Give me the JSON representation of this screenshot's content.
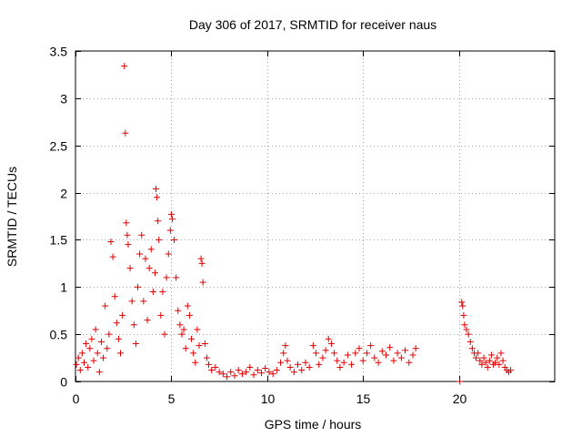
{
  "chart_data": {
    "type": "scatter",
    "title": "Day 306 of 2017, SRMTID for receiver naus",
    "xlabel": "GPS time / hours",
    "ylabel": "SRMTID / TECUs",
    "xlim": [
      0,
      25
    ],
    "ylim": [
      0,
      3.5
    ],
    "xticks": [
      0,
      5,
      10,
      15,
      20
    ],
    "xtick_labels": [
      "0",
      "5",
      "10",
      "15",
      "20"
    ],
    "yticks": [
      0,
      0.5,
      1,
      1.5,
      2,
      2.5,
      3,
      3.5
    ],
    "ytick_labels": [
      "0",
      "0.5",
      "1",
      "1.5",
      "2",
      "2.5",
      "3",
      "3.5"
    ],
    "grid": true,
    "marker": "+",
    "colors": {
      "points": "#e00000",
      "axis": "#000000",
      "grid": "#a0a0a0"
    },
    "series": [
      {
        "name": "SRMTID",
        "points": [
          [
            0.05,
            0.18
          ],
          [
            0.15,
            0.25
          ],
          [
            0.25,
            0.12
          ],
          [
            0.35,
            0.3
          ],
          [
            0.45,
            0.2
          ],
          [
            0.55,
            0.4
          ],
          [
            0.65,
            0.15
          ],
          [
            0.75,
            0.35
          ],
          [
            0.85,
            0.45
          ],
          [
            0.95,
            0.22
          ],
          [
            1.05,
            0.55
          ],
          [
            1.15,
            0.3
          ],
          [
            1.25,
            0.1
          ],
          [
            1.35,
            0.42
          ],
          [
            1.45,
            0.25
          ],
          [
            1.55,
            0.8
          ],
          [
            1.65,
            0.35
          ],
          [
            1.75,
            0.5
          ],
          [
            1.85,
            1.48
          ],
          [
            1.95,
            1.32
          ],
          [
            2.05,
            0.9
          ],
          [
            2.15,
            0.62
          ],
          [
            2.25,
            0.45
          ],
          [
            2.35,
            0.3
          ],
          [
            2.45,
            0.7
          ],
          [
            2.55,
            3.34
          ],
          [
            2.6,
            2.63
          ],
          [
            2.65,
            1.68
          ],
          [
            2.7,
            1.55
          ],
          [
            2.75,
            1.45
          ],
          [
            2.85,
            1.2
          ],
          [
            2.95,
            0.85
          ],
          [
            3.05,
            0.6
          ],
          [
            3.15,
            0.4
          ],
          [
            3.25,
            1.0
          ],
          [
            3.35,
            1.35
          ],
          [
            3.45,
            1.55
          ],
          [
            3.55,
            0.85
          ],
          [
            3.65,
            1.3
          ],
          [
            3.75,
            0.65
          ],
          [
            3.85,
            1.2
          ],
          [
            3.95,
            1.4
          ],
          [
            4.05,
            0.95
          ],
          [
            4.15,
            1.15
          ],
          [
            4.2,
            2.04
          ],
          [
            4.25,
            1.95
          ],
          [
            4.3,
            1.7
          ],
          [
            4.35,
            1.5
          ],
          [
            4.45,
            0.7
          ],
          [
            4.55,
            0.95
          ],
          [
            4.65,
            0.5
          ],
          [
            4.75,
            1.1
          ],
          [
            4.85,
            1.35
          ],
          [
            4.95,
            1.6
          ],
          [
            5.0,
            1.77
          ],
          [
            5.05,
            1.72
          ],
          [
            5.15,
            1.5
          ],
          [
            5.25,
            1.1
          ],
          [
            5.35,
            0.75
          ],
          [
            5.45,
            0.6
          ],
          [
            5.55,
            0.5
          ],
          [
            5.65,
            0.55
          ],
          [
            5.75,
            0.35
          ],
          [
            5.85,
            0.8
          ],
          [
            5.95,
            0.7
          ],
          [
            6.05,
            0.45
          ],
          [
            6.15,
            0.3
          ],
          [
            6.25,
            0.2
          ],
          [
            6.35,
            0.55
          ],
          [
            6.45,
            0.38
          ],
          [
            6.55,
            1.3
          ],
          [
            6.6,
            1.25
          ],
          [
            6.65,
            1.05
          ],
          [
            6.75,
            0.4
          ],
          [
            6.85,
            0.25
          ],
          [
            6.95,
            0.18
          ],
          [
            7.1,
            0.12
          ],
          [
            7.3,
            0.15
          ],
          [
            7.5,
            0.1
          ],
          [
            7.7,
            0.08
          ],
          [
            7.9,
            0.05
          ],
          [
            8.1,
            0.1
          ],
          [
            8.3,
            0.06
          ],
          [
            8.5,
            0.12
          ],
          [
            8.7,
            0.08
          ],
          [
            8.9,
            0.1
          ],
          [
            9.1,
            0.15
          ],
          [
            9.3,
            0.07
          ],
          [
            9.5,
            0.12
          ],
          [
            9.7,
            0.09
          ],
          [
            9.9,
            0.14
          ],
          [
            10.1,
            0.1
          ],
          [
            10.3,
            0.08
          ],
          [
            10.5,
            0.12
          ],
          [
            10.7,
            0.2
          ],
          [
            10.85,
            0.3
          ],
          [
            10.95,
            0.38
          ],
          [
            11.05,
            0.22
          ],
          [
            11.2,
            0.15
          ],
          [
            11.4,
            0.1
          ],
          [
            11.6,
            0.18
          ],
          [
            11.8,
            0.12
          ],
          [
            12.0,
            0.2
          ],
          [
            12.2,
            0.15
          ],
          [
            12.4,
            0.38
          ],
          [
            12.55,
            0.3
          ],
          [
            12.7,
            0.18
          ],
          [
            12.9,
            0.25
          ],
          [
            13.05,
            0.33
          ],
          [
            13.2,
            0.45
          ],
          [
            13.35,
            0.4
          ],
          [
            13.5,
            0.3
          ],
          [
            13.65,
            0.22
          ],
          [
            13.8,
            0.15
          ],
          [
            14.0,
            0.2
          ],
          [
            14.2,
            0.28
          ],
          [
            14.4,
            0.18
          ],
          [
            14.6,
            0.3
          ],
          [
            14.8,
            0.35
          ],
          [
            15.0,
            0.22
          ],
          [
            15.2,
            0.3
          ],
          [
            15.4,
            0.38
          ],
          [
            15.6,
            0.25
          ],
          [
            15.8,
            0.2
          ],
          [
            16.0,
            0.32
          ],
          [
            16.2,
            0.28
          ],
          [
            16.4,
            0.36
          ],
          [
            16.6,
            0.22
          ],
          [
            16.8,
            0.3
          ],
          [
            17.0,
            0.25
          ],
          [
            17.2,
            0.33
          ],
          [
            17.4,
            0.2
          ],
          [
            17.6,
            0.28
          ],
          [
            17.75,
            0.35
          ],
          [
            20.05,
            0.0
          ],
          [
            20.15,
            0.84
          ],
          [
            20.2,
            0.8
          ],
          [
            20.25,
            0.7
          ],
          [
            20.3,
            0.6
          ],
          [
            20.4,
            0.55
          ],
          [
            20.5,
            0.5
          ],
          [
            20.6,
            0.42
          ],
          [
            20.7,
            0.35
          ],
          [
            20.8,
            0.3
          ],
          [
            20.9,
            0.25
          ],
          [
            21.0,
            0.3
          ],
          [
            21.1,
            0.22
          ],
          [
            21.2,
            0.18
          ],
          [
            21.3,
            0.25
          ],
          [
            21.4,
            0.2
          ],
          [
            21.5,
            0.15
          ],
          [
            21.6,
            0.22
          ],
          [
            21.7,
            0.28
          ],
          [
            21.8,
            0.18
          ],
          [
            21.9,
            0.2
          ],
          [
            22.0,
            0.25
          ],
          [
            22.1,
            0.18
          ],
          [
            22.2,
            0.3
          ],
          [
            22.3,
            0.22
          ],
          [
            22.4,
            0.15
          ],
          [
            22.5,
            0.12
          ],
          [
            22.6,
            0.1
          ],
          [
            22.7,
            0.12
          ]
        ]
      }
    ]
  }
}
